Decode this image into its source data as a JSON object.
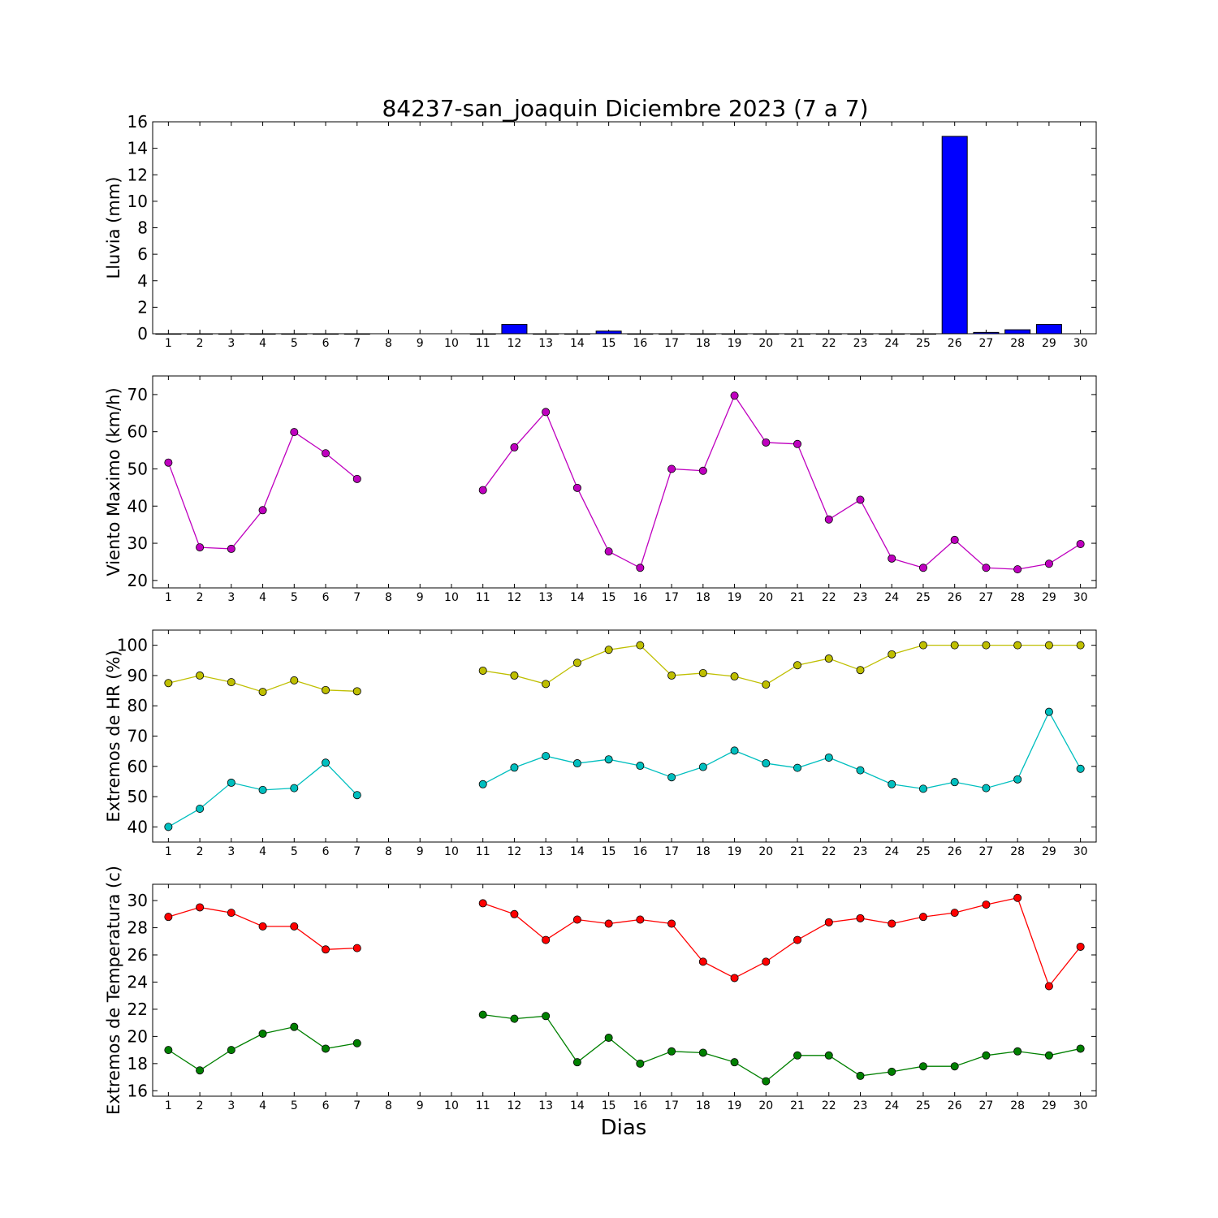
{
  "chart_data": {
    "title": "84237-san_joaquin Diciembre 2023  (7 a 7)",
    "xlabel": "Dias",
    "days": [
      1,
      2,
      3,
      4,
      5,
      6,
      7,
      8,
      9,
      10,
      11,
      12,
      13,
      14,
      15,
      16,
      17,
      18,
      19,
      20,
      21,
      22,
      23,
      24,
      25,
      26,
      27,
      28,
      29,
      30
    ],
    "panels": [
      {
        "type": "bar",
        "ylabel": "Lluvia (mm)",
        "ylim": [
          0,
          16
        ],
        "yticks": [
          0,
          2,
          4,
          6,
          8,
          10,
          12,
          14,
          16
        ],
        "series": [
          {
            "color": "#0000ff",
            "values": [
              0,
              0,
              0,
              0,
              0,
              0,
              0,
              null,
              null,
              null,
              0,
              0.7,
              0,
              0,
              0.2,
              0,
              0,
              0,
              0,
              0,
              0,
              0,
              0,
              0,
              0,
              14.9,
              0.1,
              0.3,
              0.7,
              null
            ]
          }
        ]
      },
      {
        "type": "line",
        "ylabel": "Viento Maximo (km/h)",
        "ylim": [
          18,
          75
        ],
        "yticks": [
          20,
          30,
          40,
          50,
          60,
          70
        ],
        "series": [
          {
            "color": "#bf00bf",
            "values": [
              51.7,
              28.9,
              28.5,
              38.9,
              59.9,
              54.2,
              47.3,
              null,
              null,
              null,
              44.3,
              55.8,
              65.3,
              44.9,
              27.8,
              23.4,
              50.0,
              49.5,
              69.7,
              57.1,
              56.7,
              36.4,
              41.7,
              25.9,
              23.4,
              30.9,
              23.4,
              23.0,
              24.5,
              29.8
            ]
          }
        ]
      },
      {
        "type": "line",
        "ylabel": "Extremos de HR (%)",
        "ylim": [
          35,
          105
        ],
        "yticks": [
          40,
          50,
          60,
          70,
          80,
          90,
          100
        ],
        "series": [
          {
            "color": "#bfbf00",
            "values": [
              87.5,
              90.0,
              87.8,
              84.6,
              88.4,
              85.2,
              84.8,
              null,
              null,
              null,
              91.6,
              90.0,
              87.2,
              94.2,
              98.5,
              100,
              90.0,
              90.8,
              89.7,
              87.0,
              93.4,
              95.6,
              91.8,
              97.0,
              100,
              100,
              100,
              100,
              100,
              100
            ]
          },
          {
            "color": "#00bfbf",
            "values": [
              40.0,
              46.0,
              54.6,
              52.2,
              52.8,
              61.2,
              50.5,
              null,
              null,
              null,
              54.1,
              59.6,
              63.4,
              61.0,
              62.3,
              60.2,
              56.4,
              59.8,
              65.2,
              61.0,
              59.5,
              62.9,
              58.7,
              54.1,
              52.6,
              54.8,
              52.8,
              55.7,
              78.0,
              59.2
            ]
          }
        ]
      },
      {
        "type": "line",
        "ylabel": "Extremos de Temperatura (c)",
        "ylim": [
          15.6,
          31.2
        ],
        "yticks": [
          16,
          18,
          20,
          22,
          24,
          26,
          28,
          30
        ],
        "series": [
          {
            "color": "#ff0000",
            "values": [
              28.8,
              29.5,
              29.1,
              28.1,
              28.1,
              26.4,
              26.5,
              null,
              null,
              null,
              29.8,
              29.0,
              27.1,
              28.6,
              28.3,
              28.6,
              28.3,
              25.5,
              24.3,
              25.5,
              27.1,
              28.4,
              28.7,
              28.3,
              28.8,
              29.1,
              29.7,
              30.2,
              23.7,
              26.6
            ]
          },
          {
            "color": "#008000",
            "values": [
              19.0,
              17.5,
              19.0,
              20.2,
              20.7,
              19.1,
              19.5,
              null,
              null,
              null,
              21.6,
              21.3,
              21.5,
              18.1,
              19.9,
              18.0,
              18.9,
              18.8,
              18.1,
              16.7,
              18.6,
              18.6,
              17.1,
              17.4,
              17.8,
              17.8,
              18.6,
              18.9,
              18.6,
              19.1
            ]
          }
        ]
      }
    ]
  }
}
